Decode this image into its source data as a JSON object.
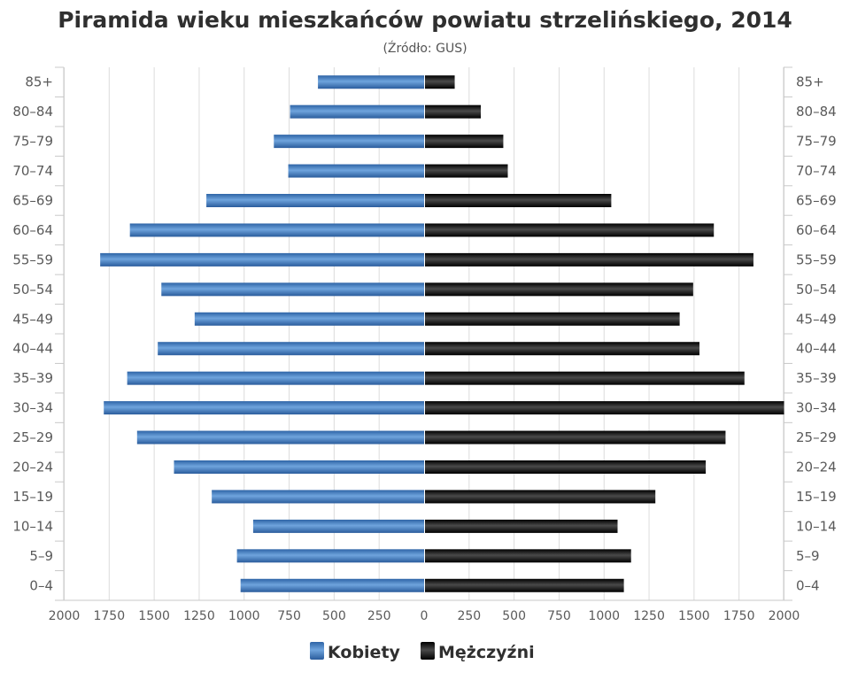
{
  "chart_data": {
    "type": "bar",
    "orientation": "horizontal",
    "layout": "population-pyramid",
    "title": "Piramida wieku mieszkańców powiatu strzelińskiego, 2014",
    "subtitle": "(Źródło: GUS)",
    "categories": [
      "85+",
      "80–84",
      "75–79",
      "70–74",
      "65–69",
      "60–64",
      "55–59",
      "50–54",
      "45–49",
      "40–44",
      "35–39",
      "30–34",
      "25–29",
      "20–24",
      "15–19",
      "10–14",
      "5–9",
      "0–4"
    ],
    "x_ticks": [
      "2000",
      "1750",
      "1500",
      "1250",
      "1000",
      "750",
      "500",
      "250",
      "0",
      "250",
      "500",
      "750",
      "1000",
      "1250",
      "1500",
      "1750",
      "2000"
    ],
    "xlim": [
      -2000,
      2000
    ],
    "grid": true,
    "legend_position": "bottom-center",
    "series": [
      {
        "name": "Kobiety",
        "side": "left",
        "color": "#4a86c8",
        "values": [
          590,
          745,
          835,
          755,
          1210,
          1635,
          1800,
          1460,
          1275,
          1480,
          1650,
          1780,
          1595,
          1390,
          1180,
          950,
          1040,
          1020
        ]
      },
      {
        "name": "Mężczyźni",
        "side": "right",
        "color": "#1a1a1a",
        "values": [
          170,
          315,
          440,
          465,
          1040,
          1610,
          1830,
          1495,
          1420,
          1530,
          1780,
          2000,
          1675,
          1565,
          1285,
          1075,
          1150,
          1110
        ]
      }
    ]
  }
}
